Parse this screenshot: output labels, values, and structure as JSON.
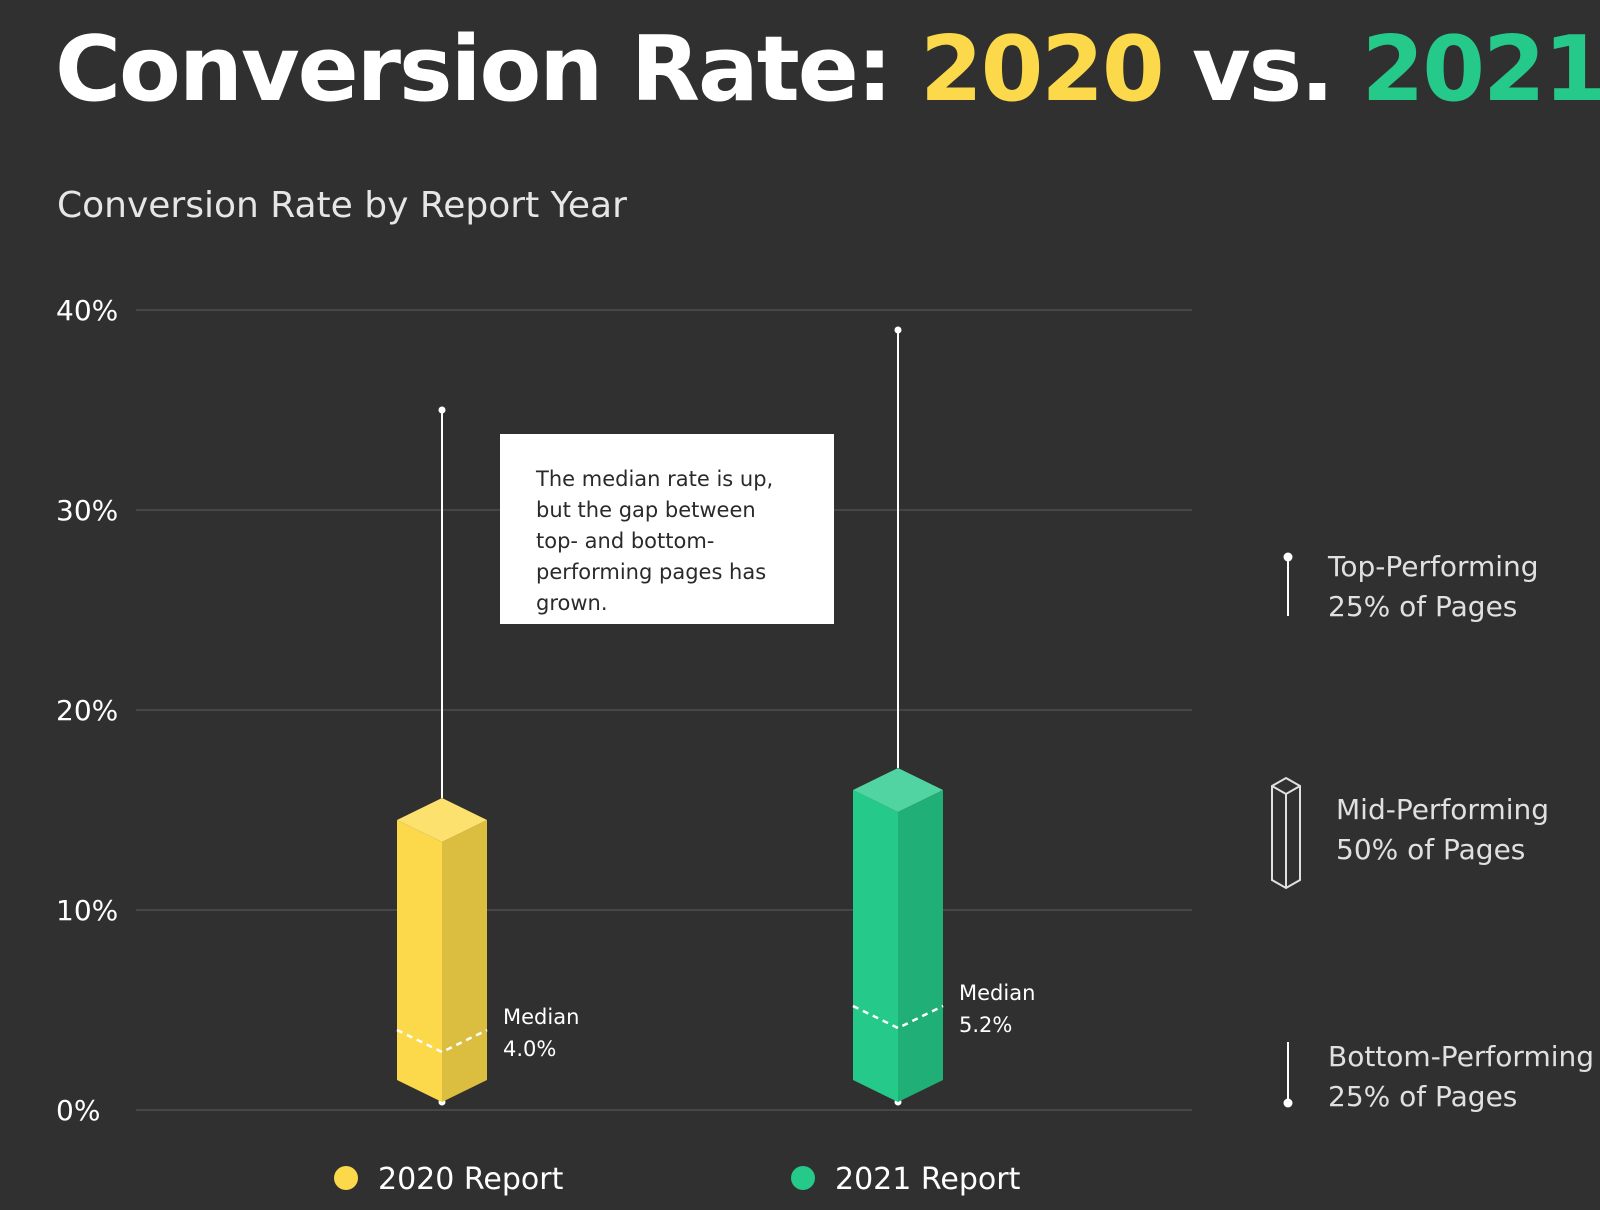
{
  "headline": {
    "prefix": "Conversion Rate: ",
    "year_a": "2020",
    "joiner": " vs. ",
    "year_b": "2021",
    "year_a_color": "#fcd94a",
    "year_b_color": "#25c989"
  },
  "callout": {
    "text": "The median rate is up, but the gap between top- and bottom-performing pages has grown."
  },
  "key": {
    "top": {
      "line1": "Top-Performing",
      "line2": "25% of Pages"
    },
    "mid": {
      "line1": "Mid-Performing",
      "line2": "50% of Pages"
    },
    "bottom": {
      "line1": "Bottom-Performing",
      "line2": "25% of Pages"
    }
  },
  "chart_data": {
    "type": "box",
    "title": "Conversion Rate by Report Year",
    "ylim": [
      0,
      40
    ],
    "yticks": [
      0,
      10,
      20,
      30,
      40
    ],
    "ytick_labels": [
      "0%",
      "10%",
      "20%",
      "30%",
      "40%"
    ],
    "grid": true,
    "legend_position": "bottom",
    "series": [
      {
        "name": "2020 Report",
        "color": "#fcd94a",
        "min": 0.4,
        "q1": 1.5,
        "median": 4.0,
        "median_label": "Median",
        "median_value_label": "4.0%",
        "q3": 14.5,
        "max": 35
      },
      {
        "name": "2021 Report",
        "color": "#25c989",
        "min": 0.4,
        "q1": 1.5,
        "median": 5.2,
        "median_label": "Median",
        "median_value_label": "5.2%",
        "q3": 16.0,
        "max": 39
      }
    ]
  }
}
